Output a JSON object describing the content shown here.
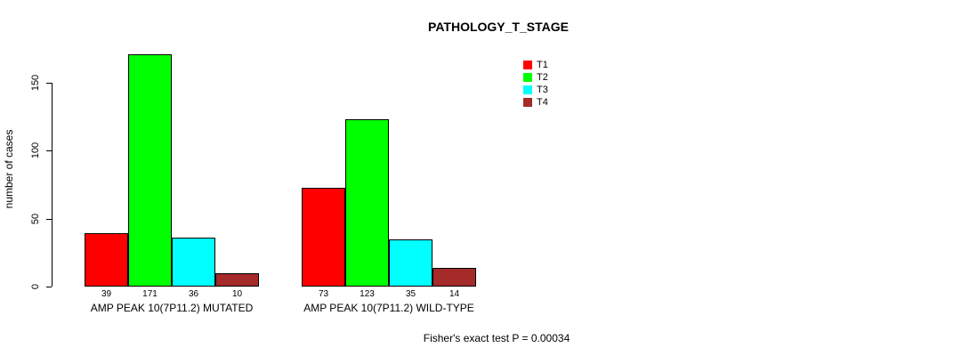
{
  "title": "PATHOLOGY_T_STAGE",
  "ylabel": "number of cases",
  "footer": "Fisher's exact test P = 0.00034",
  "colors": {
    "t1": "#FF0000",
    "t2": "#00FF00",
    "t3": "#00FFFF",
    "t4": "#A52A2A",
    "axis": "#000000",
    "background": "#FFFFFF"
  },
  "chart_data": {
    "type": "bar",
    "title": "PATHOLOGY_T_STAGE",
    "xlabel": "",
    "ylabel": "number of cases",
    "ylim": [
      0,
      175
    ],
    "yticks": [
      0,
      50,
      100,
      150
    ],
    "grid": false,
    "legend_position": "top-right",
    "bar_value_labels_shown": true,
    "categories": [
      "AMP PEAK 10(7P11.2) MUTATED",
      "AMP PEAK 10(7P11.2) WILD-TYPE"
    ],
    "series": [
      {
        "name": "T1",
        "color": "#FF0000",
        "values": [
          39,
          73
        ]
      },
      {
        "name": "T2",
        "color": "#00FF00",
        "values": [
          171,
          123
        ]
      },
      {
        "name": "T3",
        "color": "#00FFFF",
        "values": [
          36,
          35
        ]
      },
      {
        "name": "T4",
        "color": "#A52A2A",
        "values": [
          10,
          14
        ]
      }
    ],
    "annotation": "Fisher's exact test P = 0.00034"
  }
}
